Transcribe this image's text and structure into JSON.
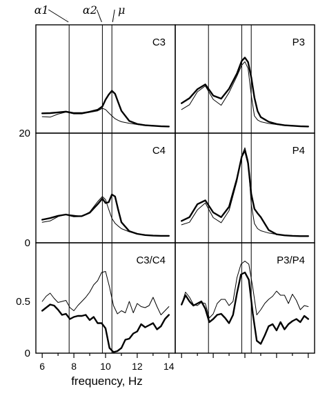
{
  "chart_data": {
    "type": "line",
    "xlabel": "frequency, Hz",
    "x_ticks": [
      "6",
      "8",
      "10",
      "12",
      "14"
    ],
    "xlim": [
      5.6,
      14.4
    ],
    "markers": [
      {
        "label": "α1",
        "x": 7.7
      },
      {
        "label": "α2",
        "x": 9.8
      },
      {
        "label": "μ",
        "x": 10.4
      }
    ],
    "y_ticks_spectra": [
      "20",
      "0"
    ],
    "y_ticks_coherence": [
      "0.5",
      "0"
    ],
    "panels": [
      {
        "label": "C3",
        "row": 0,
        "col": 0,
        "ylim": [
          0,
          40
        ],
        "x": [
          6,
          6.5,
          7,
          7.5,
          8,
          8.5,
          9,
          9.5,
          9.8,
          10,
          10.2,
          10.4,
          10.6,
          10.8,
          11,
          11.5,
          12,
          12.5,
          13,
          13.5,
          14
        ],
        "series": [
          {
            "style": "thick",
            "values": [
              7.8,
              7.9,
              8.2,
              8.5,
              7.9,
              7.9,
              8.4,
              9.2,
              10.5,
              13.2,
              15.2,
              16.7,
              15.5,
              12.1,
              8.8,
              4.8,
              3.6,
              3.1,
              2.9,
              2.7,
              2.6
            ]
          },
          {
            "style": "thin",
            "values": [
              6.5,
              6.3,
              7.5,
              8.3,
              7.6,
              7.6,
              8.2,
              8.8,
              9.8,
              9.3,
              8.0,
              6.8,
              5.7,
              5.0,
              4.5,
              3.9,
              3.4,
              3.0,
              2.8,
              2.7,
              2.6
            ]
          }
        ]
      },
      {
        "label": "P3",
        "row": 0,
        "col": 1,
        "ylim": [
          0,
          40
        ],
        "x": [
          6,
          6.5,
          7,
          7.5,
          8,
          8.5,
          9,
          9.5,
          9.8,
          10,
          10.2,
          10.4,
          10.6,
          10.8,
          11,
          11.5,
          12,
          12.5,
          13,
          13.5,
          14
        ],
        "series": [
          {
            "style": "thick",
            "values": [
              11.8,
              13.8,
              17.3,
              19.2,
              14.8,
              13.6,
              17.5,
              23.5,
              28.5,
              29.8,
              28.0,
              22.0,
              14.0,
              8.7,
              6.3,
              4.5,
              3.6,
              3.1,
              2.9,
              2.7,
              2.6
            ]
          },
          {
            "style": "thin",
            "values": [
              9.3,
              11.2,
              16.3,
              18.6,
              13.3,
              11.0,
              16.0,
              22.5,
              26.8,
              28.2,
              25.5,
              15.0,
              6.8,
              5.2,
              4.5,
              3.8,
              3.4,
              3.0,
              2.8,
              2.7,
              2.6
            ]
          }
        ]
      },
      {
        "label": "C4",
        "row": 1,
        "col": 0,
        "ylim": [
          0,
          40
        ],
        "x": [
          6,
          6.5,
          7,
          7.5,
          8,
          8.5,
          9,
          9.5,
          9.8,
          10,
          10.2,
          10.4,
          10.6,
          10.8,
          11,
          11.5,
          12,
          12.5,
          13,
          13.5,
          14
        ],
        "series": [
          {
            "style": "thick",
            "values": [
              9.0,
              9.6,
              10.5,
              11.0,
              10.3,
              10.4,
              11.7,
              15.0,
              17.2,
              15.5,
              15.8,
              18.8,
              18.0,
              12.8,
              8.0,
              4.5,
              3.5,
              3.0,
              2.8,
              2.7,
              2.7
            ]
          },
          {
            "style": "thin",
            "values": [
              8.0,
              8.5,
              10.2,
              11.1,
              10.7,
              10.3,
              12.0,
              16.0,
              18.0,
              16.8,
              13.0,
              9.5,
              7.6,
              6.5,
              5.5,
              4.3,
              3.6,
              3.0,
              2.8,
              2.7,
              2.6
            ]
          }
        ]
      },
      {
        "label": "P4",
        "row": 1,
        "col": 1,
        "ylim": [
          0,
          40
        ],
        "x": [
          6,
          6.5,
          7,
          7.5,
          8,
          8.5,
          9,
          9.5,
          9.8,
          10,
          10.2,
          10.4,
          10.6,
          10.8,
          11,
          11.5,
          12,
          12.5,
          13,
          13.5,
          14
        ],
        "series": [
          {
            "style": "thick",
            "values": [
              8.5,
              10.0,
              15.0,
              16.5,
              11.8,
              10.0,
              14.0,
              25.0,
              33.5,
              36.0,
              31.0,
              19.0,
              13.2,
              11.5,
              10.0,
              5.0,
              3.3,
              2.9,
              2.7,
              2.6,
              2.6
            ]
          },
          {
            "style": "thin",
            "values": [
              7.0,
              8.0,
              12.8,
              15.5,
              9.8,
              7.8,
              12.5,
              24.0,
              33.8,
              37.0,
              32.0,
              15.0,
              7.5,
              5.5,
              4.7,
              3.8,
              3.3,
              2.9,
              2.7,
              2.6,
              2.6
            ]
          }
        ]
      },
      {
        "label": "C3/C4",
        "row": 2,
        "col": 0,
        "ylim": [
          0,
          1
        ],
        "x": [
          6,
          6.25,
          6.5,
          6.75,
          7,
          7.25,
          7.5,
          7.75,
          8,
          8.25,
          8.5,
          8.75,
          9,
          9.25,
          9.5,
          9.75,
          10,
          10.25,
          10.5,
          10.75,
          11,
          11.25,
          11.5,
          11.75,
          12,
          12.25,
          12.5,
          12.75,
          13,
          13.25,
          13.5,
          13.75,
          14
        ],
        "series": [
          {
            "style": "thick",
            "values": [
              0.41,
              0.44,
              0.47,
              0.46,
              0.42,
              0.37,
              0.38,
              0.33,
              0.35,
              0.36,
              0.36,
              0.37,
              0.32,
              0.35,
              0.29,
              0.29,
              0.24,
              0.05,
              0.01,
              0.02,
              0.05,
              0.13,
              0.14,
              0.19,
              0.21,
              0.28,
              0.25,
              0.27,
              0.29,
              0.23,
              0.26,
              0.33,
              0.37
            ]
          },
          {
            "style": "thin",
            "values": [
              0.5,
              0.55,
              0.58,
              0.53,
              0.49,
              0.5,
              0.51,
              0.44,
              0.41,
              0.46,
              0.5,
              0.54,
              0.59,
              0.66,
              0.7,
              0.78,
              0.79,
              0.64,
              0.46,
              0.38,
              0.41,
              0.39,
              0.5,
              0.39,
              0.48,
              0.45,
              0.44,
              0.46,
              0.54,
              0.45,
              0.37,
              0.41,
              0.45
            ]
          }
        ]
      },
      {
        "label": "P3/P4",
        "row": 2,
        "col": 1,
        "ylim": [
          0,
          1
        ],
        "x": [
          6,
          6.25,
          6.5,
          6.75,
          7,
          7.25,
          7.5,
          7.75,
          8,
          8.25,
          8.5,
          8.75,
          9,
          9.25,
          9.5,
          9.75,
          10,
          10.25,
          10.5,
          10.75,
          11,
          11.25,
          11.5,
          11.75,
          12,
          12.25,
          12.5,
          12.75,
          13,
          13.25,
          13.5,
          13.75,
          14
        ],
        "series": [
          {
            "style": "thick",
            "values": [
              0.47,
              0.56,
              0.5,
              0.46,
              0.48,
              0.5,
              0.43,
              0.3,
              0.33,
              0.37,
              0.38,
              0.34,
              0.29,
              0.37,
              0.58,
              0.76,
              0.78,
              0.71,
              0.38,
              0.12,
              0.09,
              0.17,
              0.26,
              0.28,
              0.22,
              0.3,
              0.23,
              0.28,
              0.31,
              0.33,
              0.3,
              0.36,
              0.33
            ]
          },
          {
            "style": "thin",
            "values": [
              0.47,
              0.59,
              0.54,
              0.47,
              0.46,
              0.49,
              0.48,
              0.34,
              0.38,
              0.48,
              0.52,
              0.52,
              0.46,
              0.5,
              0.73,
              0.86,
              0.89,
              0.86,
              0.63,
              0.37,
              0.42,
              0.48,
              0.52,
              0.55,
              0.6,
              0.56,
              0.56,
              0.48,
              0.57,
              0.51,
              0.42,
              0.46,
              0.45
            ]
          }
        ]
      }
    ]
  }
}
